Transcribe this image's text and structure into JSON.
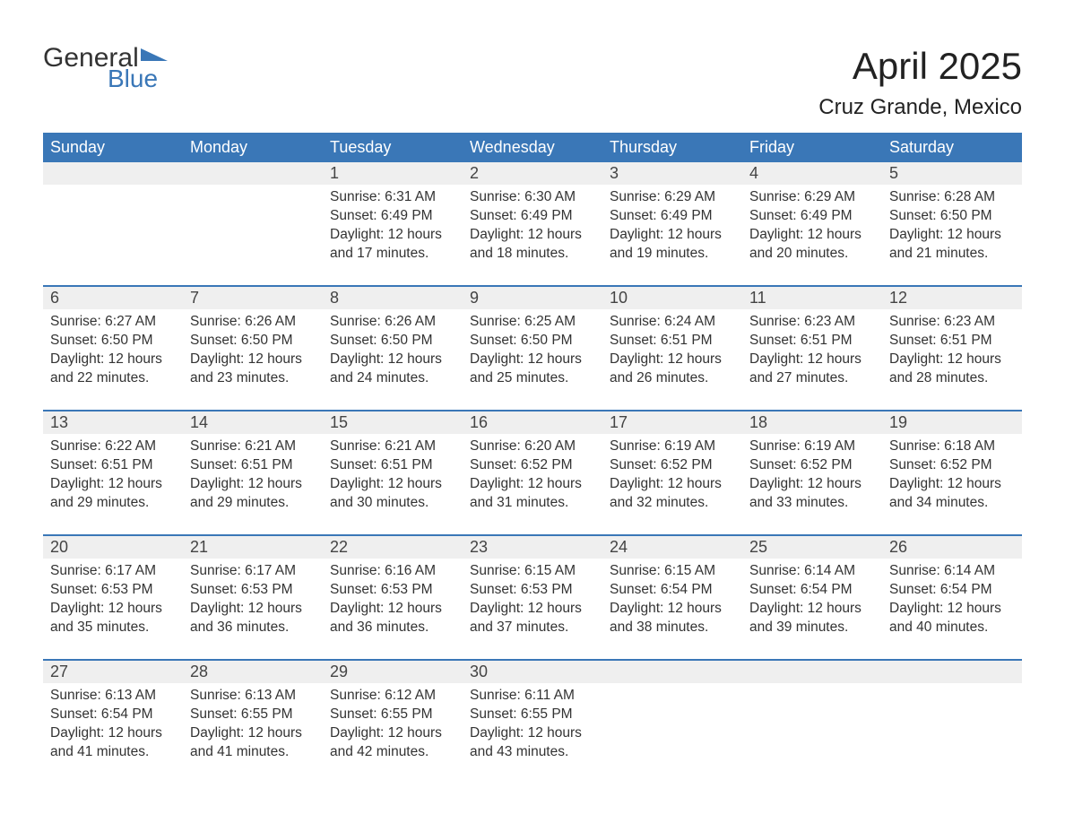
{
  "logo": {
    "text_main": "General",
    "text_sub": "Blue",
    "main_color": "#333333",
    "sub_color": "#3a77b7",
    "triangle_color": "#3a77b7"
  },
  "title": "April 2025",
  "location": "Cruz Grande, Mexico",
  "colors": {
    "header_bg": "#3a77b7",
    "header_text": "#ffffff",
    "daynum_bg": "#efefef",
    "week_border": "#3a77b7",
    "body_text": "#333333",
    "page_bg": "#ffffff"
  },
  "fonts": {
    "title_size_pt": 32,
    "location_size_pt": 18,
    "header_size_pt": 14,
    "daynum_size_pt": 14,
    "body_size_pt": 12
  },
  "layout": {
    "columns": 7,
    "weeks": 5
  },
  "day_headers": [
    "Sunday",
    "Monday",
    "Tuesday",
    "Wednesday",
    "Thursday",
    "Friday",
    "Saturday"
  ],
  "weeks": [
    {
      "days": [
        {
          "num": "",
          "sunrise": "",
          "sunset": "",
          "daylight1": "",
          "daylight2": ""
        },
        {
          "num": "",
          "sunrise": "",
          "sunset": "",
          "daylight1": "",
          "daylight2": ""
        },
        {
          "num": "1",
          "sunrise": "Sunrise: 6:31 AM",
          "sunset": "Sunset: 6:49 PM",
          "daylight1": "Daylight: 12 hours",
          "daylight2": "and 17 minutes."
        },
        {
          "num": "2",
          "sunrise": "Sunrise: 6:30 AM",
          "sunset": "Sunset: 6:49 PM",
          "daylight1": "Daylight: 12 hours",
          "daylight2": "and 18 minutes."
        },
        {
          "num": "3",
          "sunrise": "Sunrise: 6:29 AM",
          "sunset": "Sunset: 6:49 PM",
          "daylight1": "Daylight: 12 hours",
          "daylight2": "and 19 minutes."
        },
        {
          "num": "4",
          "sunrise": "Sunrise: 6:29 AM",
          "sunset": "Sunset: 6:49 PM",
          "daylight1": "Daylight: 12 hours",
          "daylight2": "and 20 minutes."
        },
        {
          "num": "5",
          "sunrise": "Sunrise: 6:28 AM",
          "sunset": "Sunset: 6:50 PM",
          "daylight1": "Daylight: 12 hours",
          "daylight2": "and 21 minutes."
        }
      ]
    },
    {
      "days": [
        {
          "num": "6",
          "sunrise": "Sunrise: 6:27 AM",
          "sunset": "Sunset: 6:50 PM",
          "daylight1": "Daylight: 12 hours",
          "daylight2": "and 22 minutes."
        },
        {
          "num": "7",
          "sunrise": "Sunrise: 6:26 AM",
          "sunset": "Sunset: 6:50 PM",
          "daylight1": "Daylight: 12 hours",
          "daylight2": "and 23 minutes."
        },
        {
          "num": "8",
          "sunrise": "Sunrise: 6:26 AM",
          "sunset": "Sunset: 6:50 PM",
          "daylight1": "Daylight: 12 hours",
          "daylight2": "and 24 minutes."
        },
        {
          "num": "9",
          "sunrise": "Sunrise: 6:25 AM",
          "sunset": "Sunset: 6:50 PM",
          "daylight1": "Daylight: 12 hours",
          "daylight2": "and 25 minutes."
        },
        {
          "num": "10",
          "sunrise": "Sunrise: 6:24 AM",
          "sunset": "Sunset: 6:51 PM",
          "daylight1": "Daylight: 12 hours",
          "daylight2": "and 26 minutes."
        },
        {
          "num": "11",
          "sunrise": "Sunrise: 6:23 AM",
          "sunset": "Sunset: 6:51 PM",
          "daylight1": "Daylight: 12 hours",
          "daylight2": "and 27 minutes."
        },
        {
          "num": "12",
          "sunrise": "Sunrise: 6:23 AM",
          "sunset": "Sunset: 6:51 PM",
          "daylight1": "Daylight: 12 hours",
          "daylight2": "and 28 minutes."
        }
      ]
    },
    {
      "days": [
        {
          "num": "13",
          "sunrise": "Sunrise: 6:22 AM",
          "sunset": "Sunset: 6:51 PM",
          "daylight1": "Daylight: 12 hours",
          "daylight2": "and 29 minutes."
        },
        {
          "num": "14",
          "sunrise": "Sunrise: 6:21 AM",
          "sunset": "Sunset: 6:51 PM",
          "daylight1": "Daylight: 12 hours",
          "daylight2": "and 29 minutes."
        },
        {
          "num": "15",
          "sunrise": "Sunrise: 6:21 AM",
          "sunset": "Sunset: 6:51 PM",
          "daylight1": "Daylight: 12 hours",
          "daylight2": "and 30 minutes."
        },
        {
          "num": "16",
          "sunrise": "Sunrise: 6:20 AM",
          "sunset": "Sunset: 6:52 PM",
          "daylight1": "Daylight: 12 hours",
          "daylight2": "and 31 minutes."
        },
        {
          "num": "17",
          "sunrise": "Sunrise: 6:19 AM",
          "sunset": "Sunset: 6:52 PM",
          "daylight1": "Daylight: 12 hours",
          "daylight2": "and 32 minutes."
        },
        {
          "num": "18",
          "sunrise": "Sunrise: 6:19 AM",
          "sunset": "Sunset: 6:52 PM",
          "daylight1": "Daylight: 12 hours",
          "daylight2": "and 33 minutes."
        },
        {
          "num": "19",
          "sunrise": "Sunrise: 6:18 AM",
          "sunset": "Sunset: 6:52 PM",
          "daylight1": "Daylight: 12 hours",
          "daylight2": "and 34 minutes."
        }
      ]
    },
    {
      "days": [
        {
          "num": "20",
          "sunrise": "Sunrise: 6:17 AM",
          "sunset": "Sunset: 6:53 PM",
          "daylight1": "Daylight: 12 hours",
          "daylight2": "and 35 minutes."
        },
        {
          "num": "21",
          "sunrise": "Sunrise: 6:17 AM",
          "sunset": "Sunset: 6:53 PM",
          "daylight1": "Daylight: 12 hours",
          "daylight2": "and 36 minutes."
        },
        {
          "num": "22",
          "sunrise": "Sunrise: 6:16 AM",
          "sunset": "Sunset: 6:53 PM",
          "daylight1": "Daylight: 12 hours",
          "daylight2": "and 36 minutes."
        },
        {
          "num": "23",
          "sunrise": "Sunrise: 6:15 AM",
          "sunset": "Sunset: 6:53 PM",
          "daylight1": "Daylight: 12 hours",
          "daylight2": "and 37 minutes."
        },
        {
          "num": "24",
          "sunrise": "Sunrise: 6:15 AM",
          "sunset": "Sunset: 6:54 PM",
          "daylight1": "Daylight: 12 hours",
          "daylight2": "and 38 minutes."
        },
        {
          "num": "25",
          "sunrise": "Sunrise: 6:14 AM",
          "sunset": "Sunset: 6:54 PM",
          "daylight1": "Daylight: 12 hours",
          "daylight2": "and 39 minutes."
        },
        {
          "num": "26",
          "sunrise": "Sunrise: 6:14 AM",
          "sunset": "Sunset: 6:54 PM",
          "daylight1": "Daylight: 12 hours",
          "daylight2": "and 40 minutes."
        }
      ]
    },
    {
      "days": [
        {
          "num": "27",
          "sunrise": "Sunrise: 6:13 AM",
          "sunset": "Sunset: 6:54 PM",
          "daylight1": "Daylight: 12 hours",
          "daylight2": "and 41 minutes."
        },
        {
          "num": "28",
          "sunrise": "Sunrise: 6:13 AM",
          "sunset": "Sunset: 6:55 PM",
          "daylight1": "Daylight: 12 hours",
          "daylight2": "and 41 minutes."
        },
        {
          "num": "29",
          "sunrise": "Sunrise: 6:12 AM",
          "sunset": "Sunset: 6:55 PM",
          "daylight1": "Daylight: 12 hours",
          "daylight2": "and 42 minutes."
        },
        {
          "num": "30",
          "sunrise": "Sunrise: 6:11 AM",
          "sunset": "Sunset: 6:55 PM",
          "daylight1": "Daylight: 12 hours",
          "daylight2": "and 43 minutes."
        },
        {
          "num": "",
          "sunrise": "",
          "sunset": "",
          "daylight1": "",
          "daylight2": ""
        },
        {
          "num": "",
          "sunrise": "",
          "sunset": "",
          "daylight1": "",
          "daylight2": ""
        },
        {
          "num": "",
          "sunrise": "",
          "sunset": "",
          "daylight1": "",
          "daylight2": ""
        }
      ]
    }
  ]
}
